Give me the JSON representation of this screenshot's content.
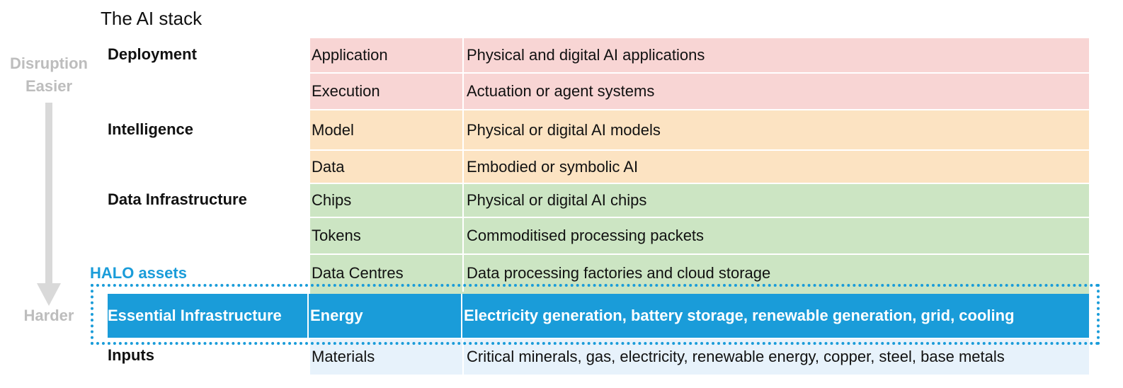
{
  "title": "The AI stack",
  "axis": {
    "top_line1": "Disruption",
    "top_line2": "Easier",
    "bottom": "Harder"
  },
  "layers": {
    "deployment": "Deployment",
    "intelligence": "Intelligence",
    "data_infrastructure": "Data Infrastructure",
    "essential_infrastructure": "Essential Infrastructure",
    "inputs": "Inputs"
  },
  "rows": [
    {
      "component": "Application",
      "description": "Physical and digital AI applications"
    },
    {
      "component": "Execution",
      "description": "Actuation or agent systems"
    },
    {
      "component": "Model",
      "description": "Physical or digital AI models"
    },
    {
      "component": "Data",
      "description": "Embodied or symbolic AI"
    },
    {
      "component": "Chips",
      "description": "Physical or digital AI chips"
    },
    {
      "component": "Tokens",
      "description": "Commoditised processing packets"
    },
    {
      "component": "Data Centres",
      "description": "Data processing factories and cloud storage"
    },
    {
      "component": "Energy",
      "description": "Electricity generation, battery storage, renewable generation, grid, cooling"
    },
    {
      "component": "Materials",
      "description": "Critical minerals, gas, electricity, renewable energy, copper, steel, base metals"
    }
  ],
  "halo_label": "HALO assets",
  "colors": {
    "deployment": "#f8d5d4",
    "intelligence": "#fce3c2",
    "data_infrastructure": "#cce5c3",
    "essential_infrastructure": "#1a9cd9",
    "inputs": "#e7f2fb",
    "axis_gray": "#bdbdbd",
    "halo_blue": "#1a9cd9"
  }
}
